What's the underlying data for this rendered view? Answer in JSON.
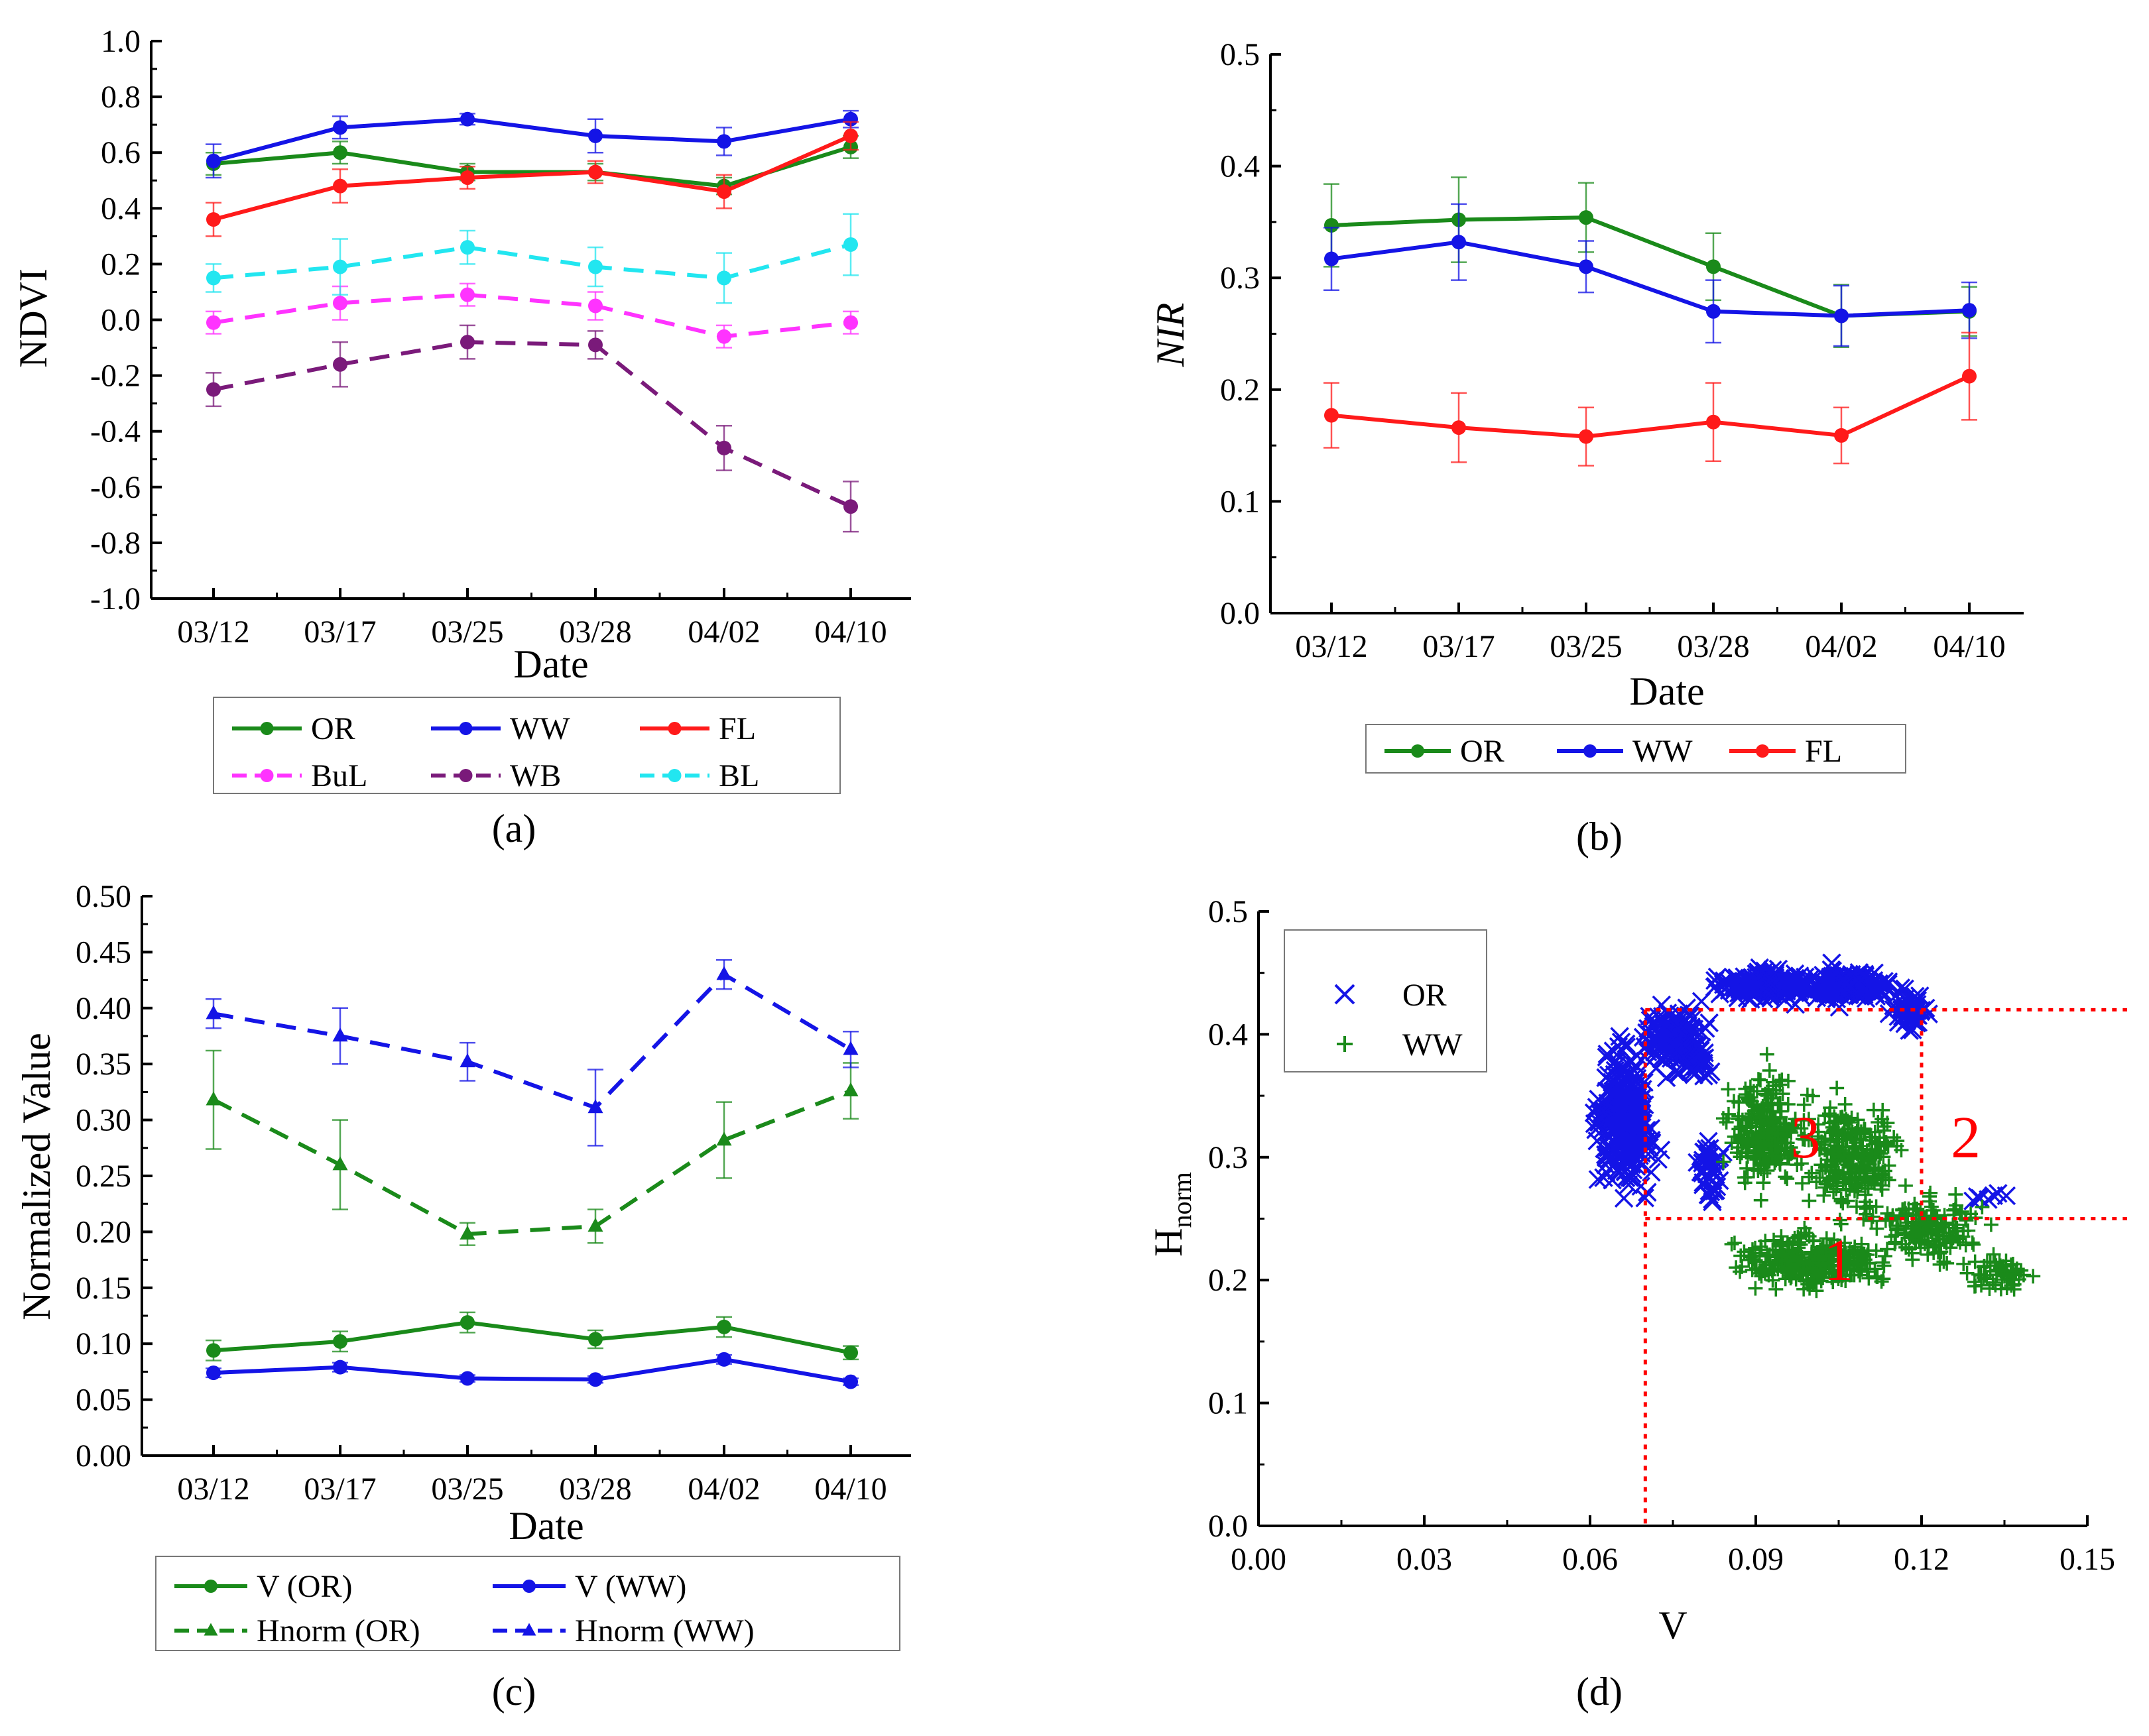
{
  "chart_data": [
    {
      "panel": "a",
      "panel_label": "(a)",
      "type": "line",
      "xlabel": "Date",
      "ylabel": "NDVI",
      "categories": [
        "03/12",
        "03/17",
        "03/25",
        "03/28",
        "04/02",
        "04/10"
      ],
      "ylim": [
        -1.0,
        1.0
      ],
      "yticks": [
        "-1.0",
        "-0.8",
        "-0.6",
        "-0.4",
        "-0.2",
        "0.0",
        "0.2",
        "0.4",
        "0.6",
        "0.8",
        "1.0"
      ],
      "legend_position": "below",
      "series": [
        {
          "name": "OR",
          "color": "#1a8a1a",
          "dash": "solid",
          "values": [
            0.56,
            0.6,
            0.53,
            0.53,
            0.48,
            0.62
          ],
          "errors": [
            0.04,
            0.04,
            0.03,
            0.03,
            0.03,
            0.04
          ]
        },
        {
          "name": "WW",
          "color": "#1414e6",
          "dash": "solid",
          "values": [
            0.57,
            0.69,
            0.72,
            0.66,
            0.64,
            0.72
          ],
          "errors": [
            0.06,
            0.04,
            0.02,
            0.06,
            0.05,
            0.03
          ]
        },
        {
          "name": "FL",
          "color": "#ff1a1a",
          "dash": "solid",
          "values": [
            0.36,
            0.48,
            0.51,
            0.53,
            0.46,
            0.66
          ],
          "errors": [
            0.06,
            0.06,
            0.04,
            0.04,
            0.06,
            0.05
          ]
        },
        {
          "name": "BuL",
          "color": "#ff33ff",
          "dash": "dashed",
          "values": [
            -0.01,
            0.06,
            0.09,
            0.05,
            -0.06,
            -0.01
          ],
          "errors": [
            0.04,
            0.06,
            0.04,
            0.05,
            0.04,
            0.04
          ]
        },
        {
          "name": "WB",
          "color": "#7a1a7a",
          "dash": "dashed",
          "values": [
            -0.25,
            -0.16,
            -0.08,
            -0.09,
            -0.46,
            -0.67
          ],
          "errors": [
            0.06,
            0.08,
            0.06,
            0.05,
            0.08,
            0.09
          ]
        },
        {
          "name": "BL",
          "color": "#22e6f0",
          "dash": "dashed",
          "values": [
            0.15,
            0.19,
            0.26,
            0.19,
            0.15,
            0.27
          ],
          "errors": [
            0.05,
            0.1,
            0.06,
            0.07,
            0.09,
            0.11
          ]
        }
      ]
    },
    {
      "panel": "b",
      "panel_label": "(b)",
      "type": "line",
      "xlabel": "Date",
      "ylabel": "NIR",
      "categories": [
        "03/12",
        "03/17",
        "03/25",
        "03/28",
        "04/02",
        "04/10"
      ],
      "ylim": [
        0.0,
        0.5
      ],
      "yticks": [
        "0.0",
        "0.1",
        "0.2",
        "0.3",
        "0.4",
        "0.5"
      ],
      "legend_position": "below",
      "series": [
        {
          "name": "OR",
          "color": "#1a8a1a",
          "dash": "solid",
          "values": [
            0.347,
            0.352,
            0.354,
            0.31,
            0.266,
            0.27
          ],
          "errors": [
            0.037,
            0.038,
            0.031,
            0.03,
            0.028,
            0.022
          ]
        },
        {
          "name": "WW",
          "color": "#1414e6",
          "dash": "solid",
          "values": [
            0.317,
            0.332,
            0.31,
            0.27,
            0.266,
            0.271
          ],
          "errors": [
            0.028,
            0.034,
            0.023,
            0.028,
            0.027,
            0.025
          ]
        },
        {
          "name": "FL",
          "color": "#ff1a1a",
          "dash": "solid",
          "values": [
            0.177,
            0.166,
            0.158,
            0.171,
            0.159,
            0.212
          ],
          "errors": [
            0.029,
            0.031,
            0.026,
            0.035,
            0.025,
            0.039
          ]
        }
      ]
    },
    {
      "panel": "c",
      "panel_label": "(c)",
      "type": "line",
      "xlabel": "Date",
      "ylabel": "Normalized Value",
      "categories": [
        "03/12",
        "03/17",
        "03/25",
        "03/28",
        "04/02",
        "04/10"
      ],
      "ylim": [
        0.0,
        0.5
      ],
      "yticks": [
        "0.00",
        "0.05",
        "0.10",
        "0.15",
        "0.20",
        "0.25",
        "0.30",
        "0.35",
        "0.40",
        "0.45",
        "0.50"
      ],
      "legend_position": "below",
      "series": [
        {
          "name": "V (OR)",
          "color": "#1a8a1a",
          "dash": "solid",
          "marker": "circle",
          "values": [
            0.094,
            0.102,
            0.119,
            0.104,
            0.115,
            0.092
          ],
          "errors": [
            0.009,
            0.009,
            0.009,
            0.008,
            0.009,
            0.006
          ]
        },
        {
          "name": "V (WW)",
          "color": "#1414e6",
          "dash": "solid",
          "marker": "circle",
          "values": [
            0.074,
            0.079,
            0.069,
            0.068,
            0.086,
            0.066
          ],
          "errors": [
            0.004,
            0.004,
            0.003,
            0.003,
            0.004,
            0.003
          ]
        },
        {
          "name": "Hnorm (OR)",
          "color": "#1a8a1a",
          "dash": "dashed",
          "marker": "triangle",
          "values": [
            0.318,
            0.26,
            0.198,
            0.205,
            0.282,
            0.326
          ],
          "errors": [
            0.044,
            0.04,
            0.01,
            0.015,
            0.034,
            0.025
          ]
        },
        {
          "name": "Hnorm (WW)",
          "color": "#1414e6",
          "dash": "dashed",
          "marker": "triangle",
          "values": [
            0.395,
            0.375,
            0.352,
            0.311,
            0.43,
            0.363
          ],
          "errors": [
            0.013,
            0.025,
            0.017,
            0.034,
            0.013,
            0.016
          ]
        }
      ]
    },
    {
      "panel": "d",
      "panel_label": "(d)",
      "type": "scatter",
      "xlabel": "V",
      "ylabel_main": "H",
      "ylabel_sub": "norm",
      "xlim": [
        0.0,
        0.15
      ],
      "ylim": [
        0.0,
        0.5
      ],
      "xticks": [
        "0.00",
        "0.03",
        "0.06",
        "0.09",
        "0.12",
        "0.15"
      ],
      "yticks": [
        "0.0",
        "0.1",
        "0.2",
        "0.3",
        "0.4",
        "0.5"
      ],
      "legend_position": "top-left",
      "series": [
        {
          "name": "OR",
          "color": "#1414e6",
          "marker": "x",
          "clusters": [
            {
              "cx": 0.066,
              "cy": 0.33,
              "sx": 0.005,
              "sy": 0.05,
              "n": 300
            },
            {
              "cx": 0.076,
              "cy": 0.395,
              "sx": 0.006,
              "sy": 0.025,
              "n": 160
            },
            {
              "cx": 0.092,
              "cy": 0.44,
              "sx": 0.007,
              "sy": 0.01,
              "n": 200
            },
            {
              "cx": 0.106,
              "cy": 0.44,
              "sx": 0.008,
              "sy": 0.012,
              "n": 200
            },
            {
              "cx": 0.118,
              "cy": 0.418,
              "sx": 0.003,
              "sy": 0.015,
              "n": 60
            },
            {
              "cx": 0.082,
              "cy": 0.29,
              "sx": 0.003,
              "sy": 0.025,
              "n": 40
            },
            {
              "cx": 0.131,
              "cy": 0.268,
              "sx": 0.004,
              "sy": 0.008,
              "n": 8
            }
          ]
        },
        {
          "name": "WW",
          "color": "#1a8a1a",
          "marker": "+",
          "clusters": [
            {
              "cx": 0.092,
              "cy": 0.32,
              "sx": 0.006,
              "sy": 0.04,
              "n": 260
            },
            {
              "cx": 0.108,
              "cy": 0.3,
              "sx": 0.008,
              "sy": 0.04,
              "n": 260
            },
            {
              "cx": 0.1,
              "cy": 0.215,
              "sx": 0.012,
              "sy": 0.02,
              "n": 300
            },
            {
              "cx": 0.122,
              "cy": 0.24,
              "sx": 0.008,
              "sy": 0.025,
              "n": 160
            },
            {
              "cx": 0.134,
              "cy": 0.205,
              "sx": 0.005,
              "sy": 0.012,
              "n": 60
            }
          ]
        }
      ],
      "threshold_lines": {
        "v": [
          0.07,
          0.12
        ],
        "h": [
          0.25,
          0.42
        ],
        "color": "#ff0000"
      },
      "regions": [
        "1",
        "2",
        "3"
      ]
    }
  ]
}
